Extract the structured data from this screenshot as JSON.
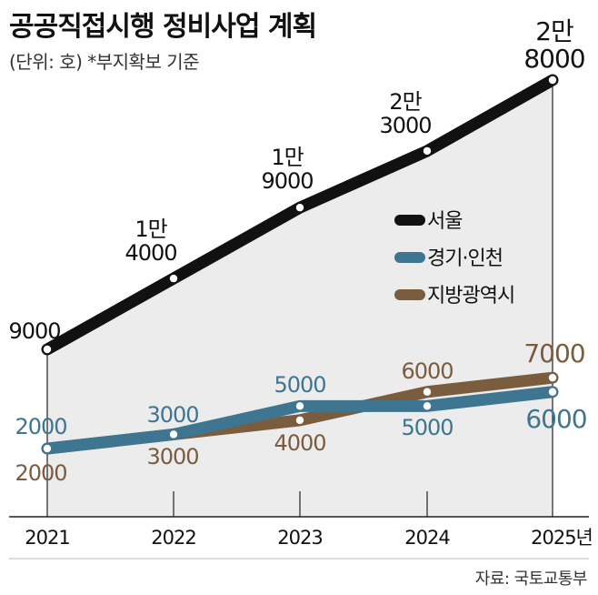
{
  "header": {
    "title": "공공직접시행 정비사업 계획",
    "subtitle": "(단위: 호) *부지확보 기준"
  },
  "footer": {
    "source": "자료: 국토교통부"
  },
  "colors": {
    "seoul": "#111111",
    "gyeonggi": "#3e7591",
    "regional": "#7a5c3e",
    "background": "#ececec"
  },
  "chart_data": {
    "type": "line",
    "categories": [
      "2021",
      "2022",
      "2023",
      "2024",
      "2025년"
    ],
    "ylim": [
      0,
      30000
    ],
    "grid": false,
    "legend_position": "center-right",
    "series": [
      {
        "name": "서울",
        "values": [
          9000,
          14000,
          19000,
          23000,
          28000
        ],
        "labels": [
          [
            "9000"
          ],
          [
            "1만",
            "4000"
          ],
          [
            "1만",
            "9000"
          ],
          [
            "2만",
            "3000"
          ],
          [
            "2만",
            "8000"
          ]
        ]
      },
      {
        "name": "경기·인천",
        "values": [
          2000,
          3000,
          5000,
          5000,
          6000
        ],
        "labels": [
          [
            "2000"
          ],
          [
            "3000"
          ],
          [
            "5000"
          ],
          [
            "5000"
          ],
          [
            "6000"
          ]
        ]
      },
      {
        "name": "지방광역시",
        "values": [
          2000,
          3000,
          4000,
          6000,
          7000
        ],
        "labels": [
          [
            "2000"
          ],
          [
            "3000"
          ],
          [
            "4000"
          ],
          [
            "6000"
          ],
          [
            "7000"
          ]
        ]
      }
    ]
  }
}
